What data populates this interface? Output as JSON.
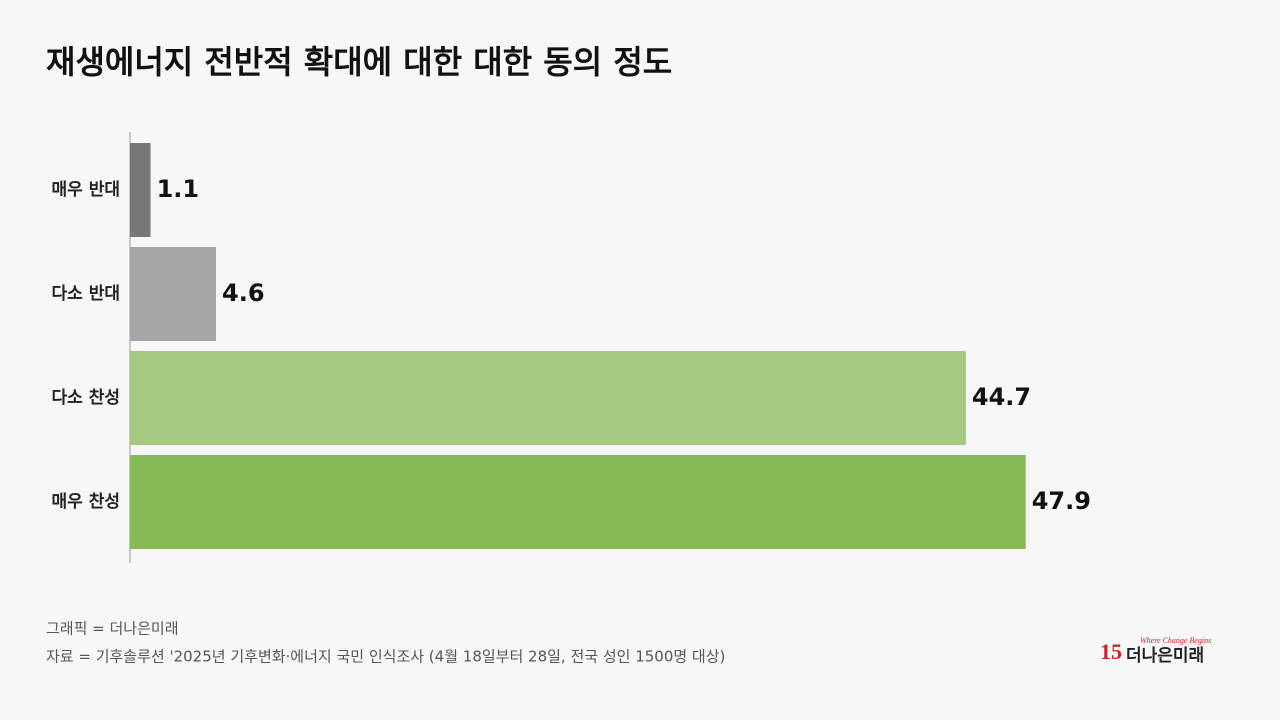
{
  "chart_data": {
    "type": "barh",
    "title": "재생에너지 전반적 확대에 대한 대한 동의 정도",
    "categories": [
      "매우 반대",
      "다소 반대",
      "다소 찬성",
      "매우 찬성"
    ],
    "values": [
      1.1,
      4.6,
      44.7,
      47.9
    ],
    "colors": [
      "#777777",
      "#a6a6a6",
      "#a5c981",
      "#87ba55"
    ],
    "xlim": [
      0,
      60
    ]
  },
  "footer": {
    "credit": "그래픽 = 더나은미래",
    "source": "자료 = 기후솔루션 '2025년 기후변화·에너지 국민 인식조사 (4월 18일부터 28일, 전국 성인 1500명 대상)"
  },
  "logo": {
    "number": "15",
    "tagline": "Where Change Begins",
    "name": "더나은미래"
  }
}
